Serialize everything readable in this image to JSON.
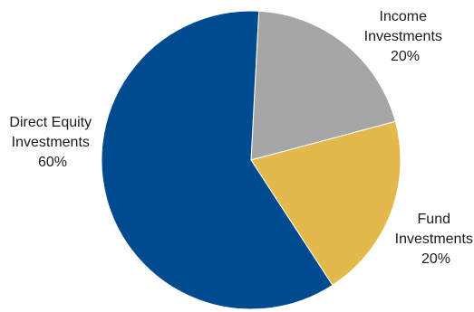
{
  "chart_data": {
    "type": "pie",
    "title": "",
    "start_angle_deg": 3,
    "direction": "clockwise",
    "slices": [
      {
        "lines": [
          "Income",
          "Investments",
          "20%"
        ],
        "value": 20,
        "color": "#a6a6a6"
      },
      {
        "lines": [
          "Fund",
          "Investments",
          "20%"
        ],
        "value": 20,
        "color": "#e3b94c"
      },
      {
        "lines": [
          "Direct Equity",
          "Investments",
          "60%"
        ],
        "value": 60,
        "color": "#004a8f"
      }
    ]
  }
}
